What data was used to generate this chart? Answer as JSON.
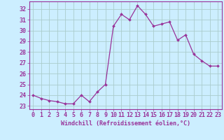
{
  "x": [
    0,
    1,
    2,
    3,
    4,
    5,
    6,
    7,
    8,
    9,
    10,
    11,
    12,
    13,
    14,
    15,
    16,
    17,
    18,
    19,
    20,
    21,
    22,
    23
  ],
  "y": [
    24.0,
    23.7,
    23.5,
    23.4,
    23.2,
    23.2,
    24.0,
    23.4,
    24.3,
    25.0,
    30.4,
    31.5,
    31.0,
    32.3,
    31.5,
    30.4,
    30.6,
    30.8,
    29.1,
    29.6,
    27.8,
    27.2,
    26.7,
    26.7
  ],
  "line_color": "#993399",
  "marker_color": "#993399",
  "bg_color": "#cceeff",
  "grid_color": "#aacccc",
  "axis_color": "#993399",
  "xlabel": "Windchill (Refroidissement éolien,°C)",
  "ylim": [
    22.7,
    32.7
  ],
  "xlim": [
    -0.5,
    23.5
  ],
  "yticks": [
    23,
    24,
    25,
    26,
    27,
    28,
    29,
    30,
    31,
    32
  ],
  "xticks": [
    0,
    1,
    2,
    3,
    4,
    5,
    6,
    7,
    8,
    9,
    10,
    11,
    12,
    13,
    14,
    15,
    16,
    17,
    18,
    19,
    20,
    21,
    22,
    23
  ],
  "xtick_labels": [
    "0",
    "1",
    "2",
    "3",
    "4",
    "5",
    "6",
    "7",
    "8",
    "9",
    "10",
    "11",
    "12",
    "13",
    "14",
    "15",
    "16",
    "17",
    "18",
    "19",
    "20",
    "21",
    "22",
    "23"
  ],
  "label_fontsize": 6.0,
  "tick_fontsize": 6.0
}
